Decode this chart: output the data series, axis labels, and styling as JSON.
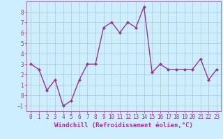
{
  "x": [
    0,
    1,
    2,
    3,
    4,
    5,
    6,
    7,
    8,
    9,
    10,
    11,
    12,
    13,
    14,
    15,
    16,
    17,
    18,
    19,
    20,
    21,
    22,
    23
  ],
  "y": [
    3,
    2.5,
    0.5,
    1.5,
    -1,
    -0.5,
    1.5,
    3,
    3,
    6.5,
    7,
    6,
    7,
    6.5,
    8.5,
    2.2,
    3,
    2.5,
    2.5,
    2.5,
    2.5,
    3.5,
    1.5,
    2.5
  ],
  "line_color": "#993399",
  "marker": "D",
  "marker_size": 2,
  "linewidth": 1.0,
  "bg_color": "#cceeff",
  "grid_color": "#aacccc",
  "xlabel": "Windchill (Refroidissement éolien,°C)",
  "xlabel_fontsize": 6.5,
  "xlabel_color": "#993399",
  "tick_color": "#993399",
  "tick_fontsize": 5.5,
  "ylim": [
    -1.5,
    9.0
  ],
  "xlim": [
    -0.5,
    23.5
  ],
  "yticks": [
    -1,
    0,
    1,
    2,
    3,
    4,
    5,
    6,
    7,
    8
  ],
  "xticks": [
    0,
    1,
    2,
    3,
    4,
    5,
    6,
    7,
    8,
    9,
    10,
    11,
    12,
    13,
    14,
    15,
    16,
    17,
    18,
    19,
    20,
    21,
    22,
    23
  ]
}
